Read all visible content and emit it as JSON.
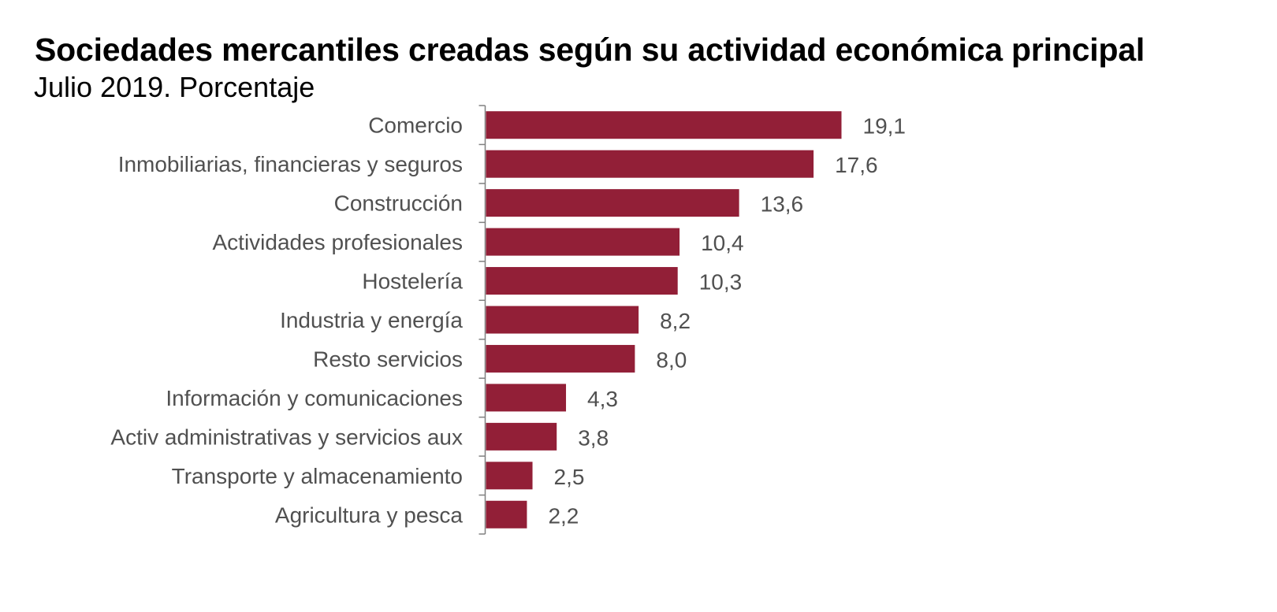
{
  "chart_data": {
    "type": "bar",
    "orientation": "horizontal",
    "title": "Sociedades mercantiles creadas según su actividad económica principal",
    "subtitle": "Julio 2019. Porcentaje",
    "xlabel": "",
    "ylabel": "",
    "categories": [
      "Comercio",
      "Inmobiliarias, financieras y seguros",
      "Construcción",
      "Actividades profesionales",
      "Hostelería",
      "Industria y energía",
      "Resto servicios",
      "Información y comunicaciones",
      "Activ administrativas y servicios aux",
      "Transporte y almacenamiento",
      "Agricultura y pesca"
    ],
    "values": [
      19.1,
      17.6,
      13.6,
      10.4,
      10.3,
      8.2,
      8.0,
      4.3,
      3.8,
      2.5,
      2.2
    ],
    "value_labels": [
      "19,1",
      "17,6",
      "13,6",
      "10,4",
      "10,3",
      "8,2",
      "8,0",
      "4,3",
      "3,8",
      "2,5",
      "2,2"
    ],
    "xlim": [
      0,
      19.1
    ],
    "grid": false,
    "legend": "none",
    "bar_color": "#921F37",
    "label_color": "#505050"
  }
}
